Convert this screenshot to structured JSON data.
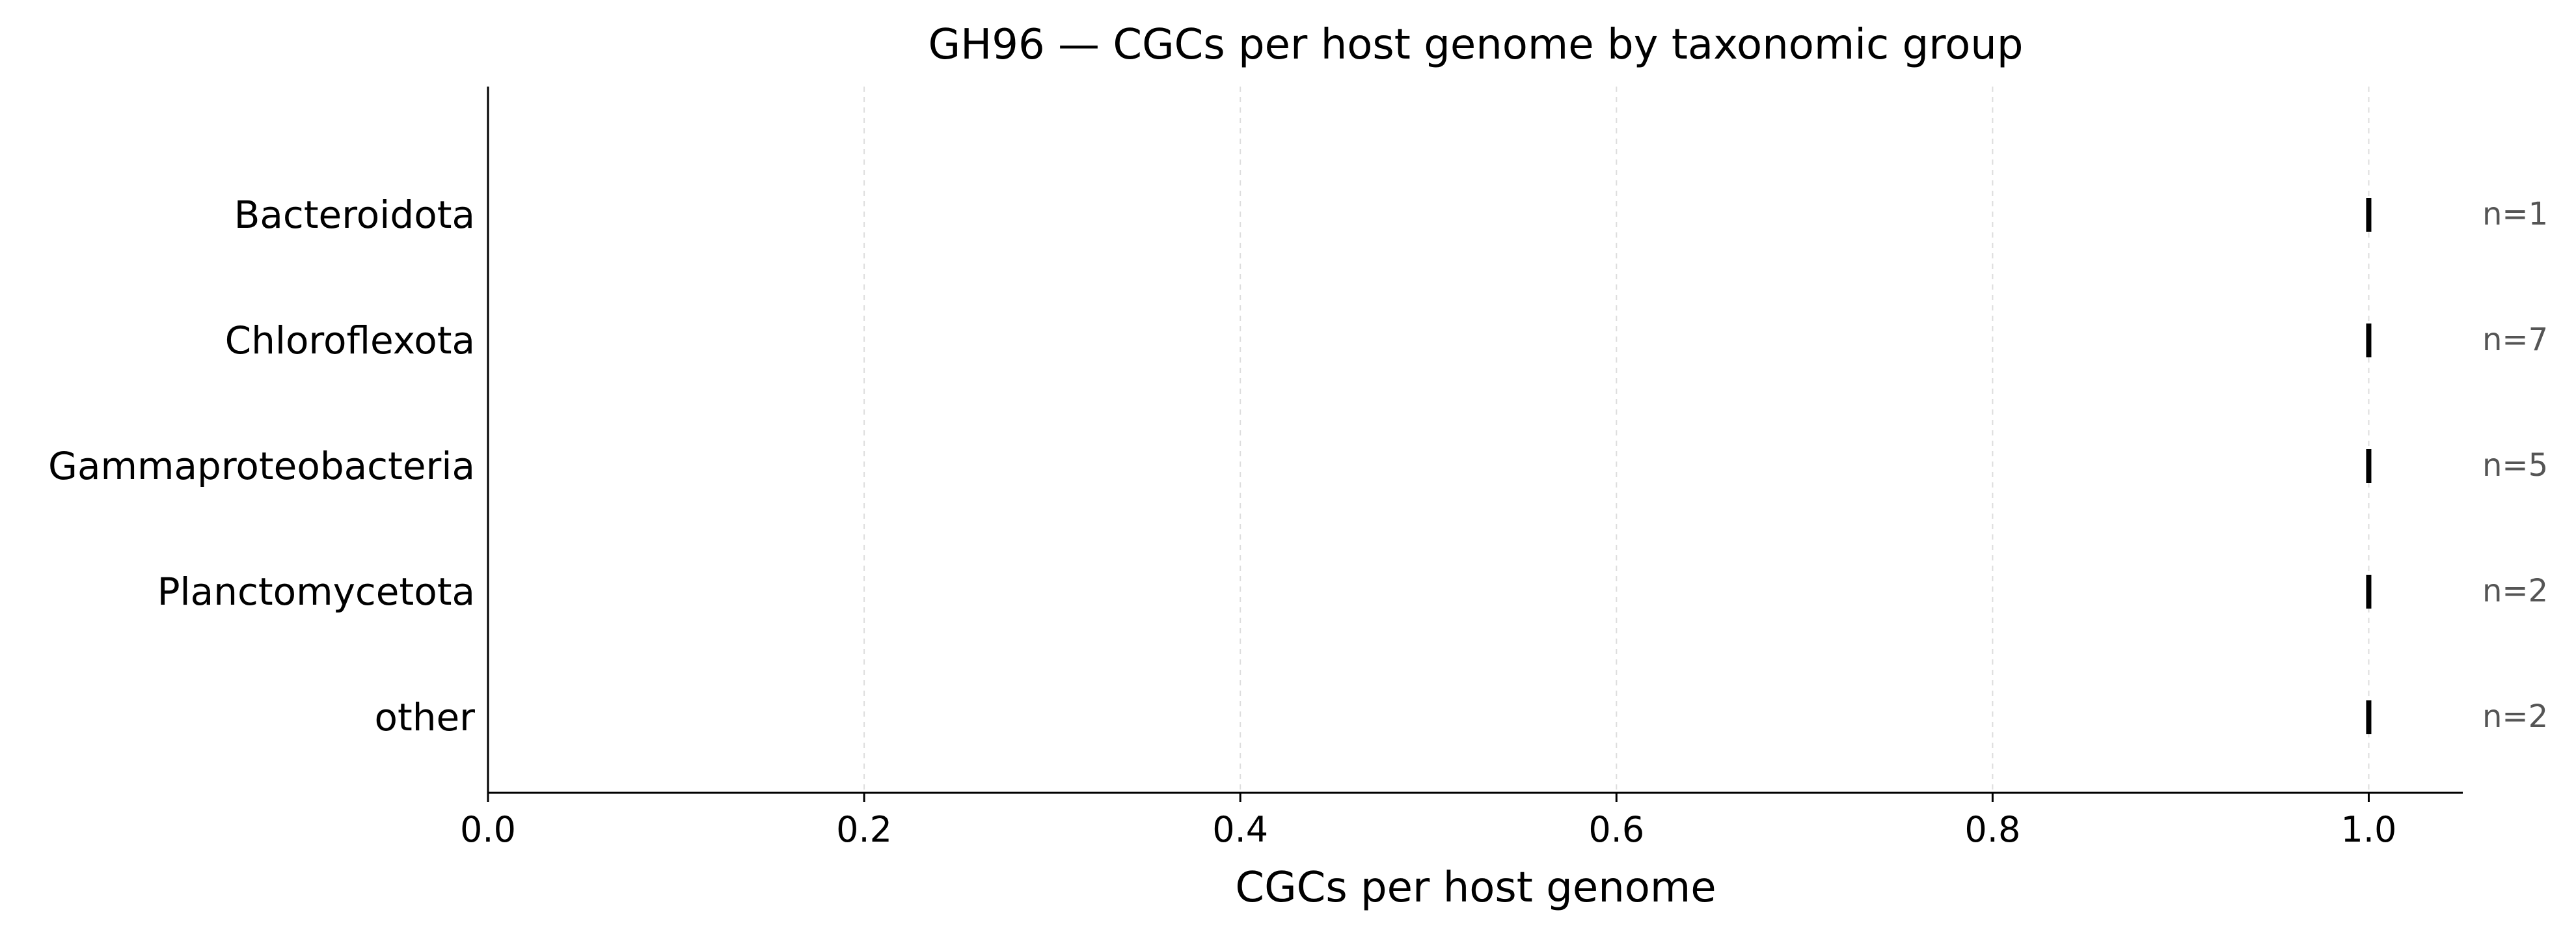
{
  "chart_data": {
    "type": "scatter",
    "title": "GH96 — CGCs per host genome by taxonomic group",
    "xlabel": "CGCs per host genome",
    "ylabel": "",
    "xlim": [
      0,
      1.05
    ],
    "xticks": [
      0.0,
      0.2,
      0.4,
      0.6,
      0.8,
      1.0
    ],
    "xtick_labels": [
      "0.0",
      "0.2",
      "0.4",
      "0.6",
      "0.8",
      "1.0"
    ],
    "grid": "vertical dashed",
    "categories": [
      "Bacteroidota",
      "Chloroflexota",
      "Gammaproteobacteria",
      "Planctomycetota",
      "other"
    ],
    "values": [
      1.0,
      1.0,
      1.0,
      1.0,
      1.0
    ],
    "counts": [
      "n=1",
      "n=7",
      "n=5",
      "n=2",
      "n=2"
    ],
    "colors": {
      "marker": "#000000",
      "axis": "#000000",
      "grid": "#dddddd",
      "count_text": "#555555"
    }
  }
}
